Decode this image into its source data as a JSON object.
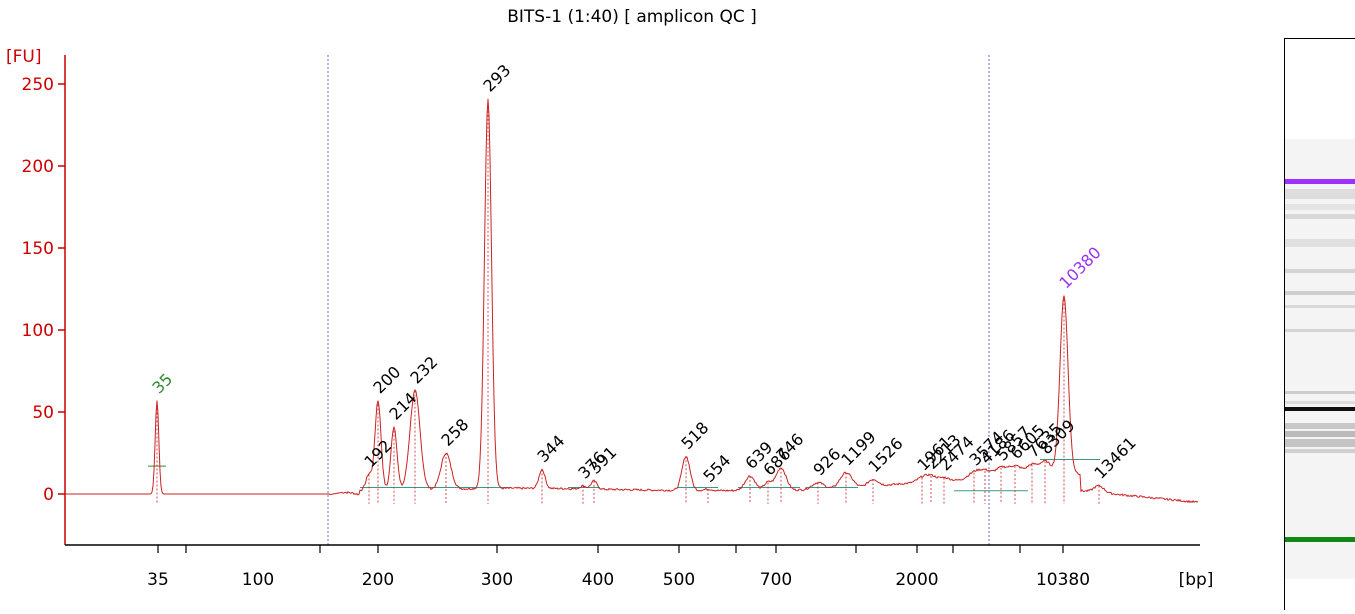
{
  "chart_data": {
    "type": "line",
    "title": "BITS-1 (1:40)  [ amplicon QC ]",
    "ylabel": "[FU]",
    "xlabel": "[bp]",
    "ylim": [
      -30,
      265
    ],
    "yticks": [
      0,
      50,
      100,
      150,
      200,
      250
    ],
    "xtick_labels": [
      "35",
      "100",
      "200",
      "300",
      "400",
      "500",
      "700",
      "2000",
      "10380"
    ],
    "series_color": "#cc2222",
    "marker_colors": {
      "lower": "#2e8b2e",
      "upper": "#9933ee",
      "peak_label": "#000000",
      "axis": "#cc0000",
      "region_line": "#6a6ac8"
    },
    "peaks": [
      {
        "label": "35",
        "fu": 57,
        "type": "lower_marker"
      },
      {
        "label": "192",
        "fu": 12
      },
      {
        "label": "200",
        "fu": 57
      },
      {
        "label": "214",
        "fu": 41
      },
      {
        "label": "232",
        "fu": 63
      },
      {
        "label": "258",
        "fu": 25
      },
      {
        "label": "293",
        "fu": 241
      },
      {
        "label": "344",
        "fu": 15
      },
      {
        "label": "376",
        "fu": 5
      },
      {
        "label": "391",
        "fu": 8
      },
      {
        "label": "518",
        "fu": 23
      },
      {
        "label": "554",
        "fu": 3
      },
      {
        "label": "639",
        "fu": 11
      },
      {
        "label": "686",
        "fu": 7
      },
      {
        "label": "746",
        "fu": 16
      },
      {
        "label": "926",
        "fu": 7
      },
      {
        "label": "1199",
        "fu": 13
      },
      {
        "label": "1526",
        "fu": 9
      },
      {
        "label": "1961",
        "fu": 10
      },
      {
        "label": "2213",
        "fu": 11
      },
      {
        "label": "2474",
        "fu": 10
      },
      {
        "label": "3574",
        "fu": 13
      },
      {
        "label": "4186",
        "fu": 14
      },
      {
        "label": "5857",
        "fu": 16
      },
      {
        "label": "6605",
        "fu": 17
      },
      {
        "label": "7635",
        "fu": 18
      },
      {
        "label": "8309",
        "fu": 20
      },
      {
        "label": "10380",
        "fu": 121,
        "type": "upper_marker"
      },
      {
        "label": "13461",
        "fu": 5
      }
    ],
    "gel": {
      "marker_lower_color": "#118811",
      "marker_upper_color": "#9b30ff",
      "main_band_color": "#111111"
    }
  }
}
